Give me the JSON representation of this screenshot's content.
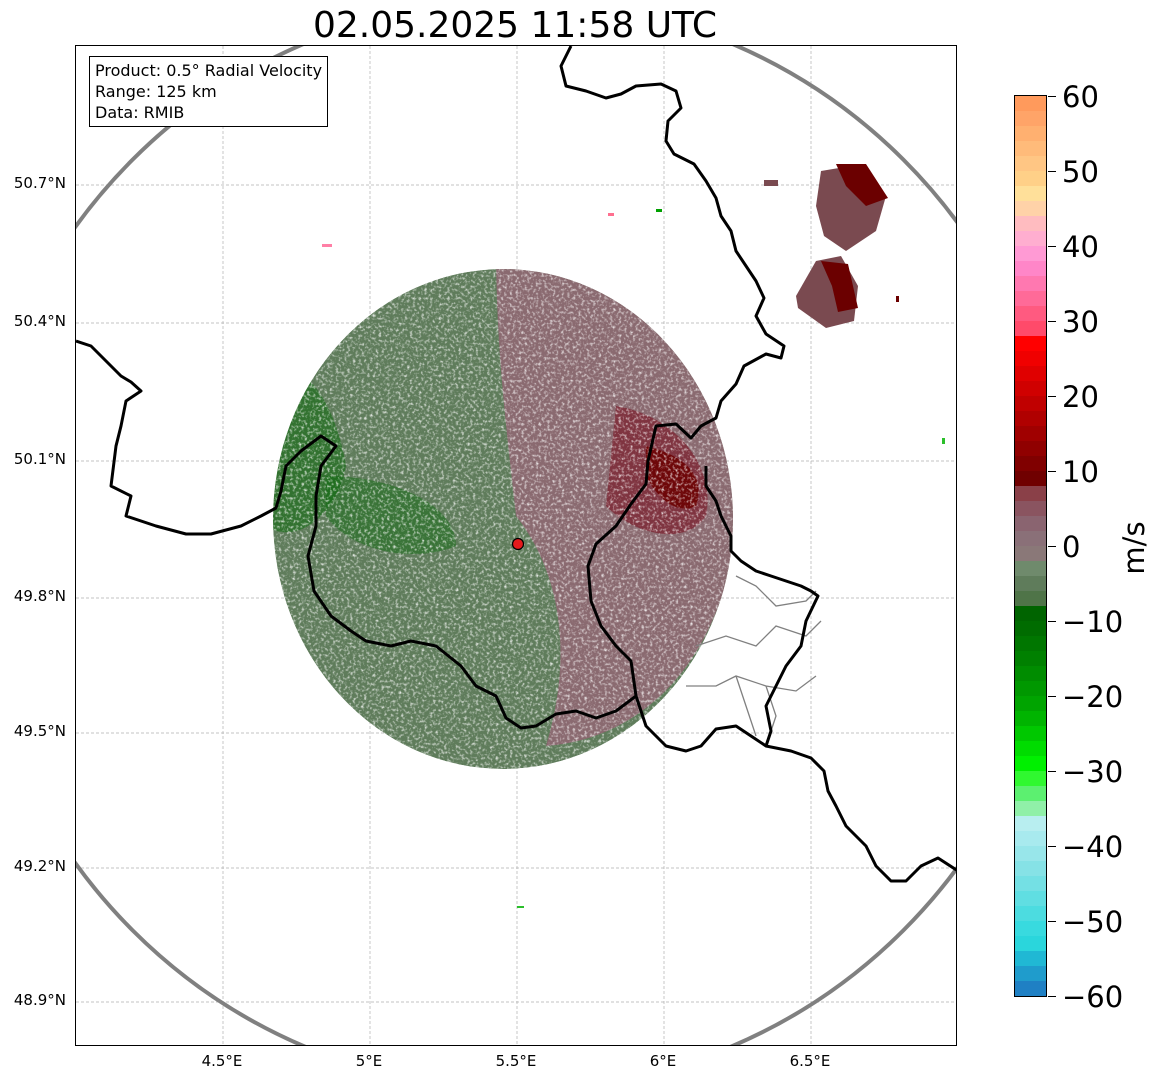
{
  "title": "02.05.2025 11:58 UTC",
  "info_box": {
    "product": "Product: 0.5° Radial Velocity",
    "range": "Range: 125 km",
    "data": "Data: RMIB"
  },
  "lat_ticks": [
    "50.7°N",
    "50.4°N",
    "50.1°N",
    "49.8°N",
    "49.5°N",
    "49.2°N",
    "48.9°N"
  ],
  "lon_ticks": [
    "4.5°E",
    "5°E",
    "5.5°E",
    "6°E",
    "6.5°E"
  ],
  "colorbar": {
    "unit": "m/s",
    "ticks": [
      "60",
      "50",
      "40",
      "30",
      "20",
      "10",
      "0",
      "−10",
      "−20",
      "−30",
      "−40",
      "−50",
      "−60"
    ]
  },
  "map": {
    "radar_site": "radar-site-marker",
    "range_ring_color": "#808080",
    "border_color": "#000000"
  }
}
